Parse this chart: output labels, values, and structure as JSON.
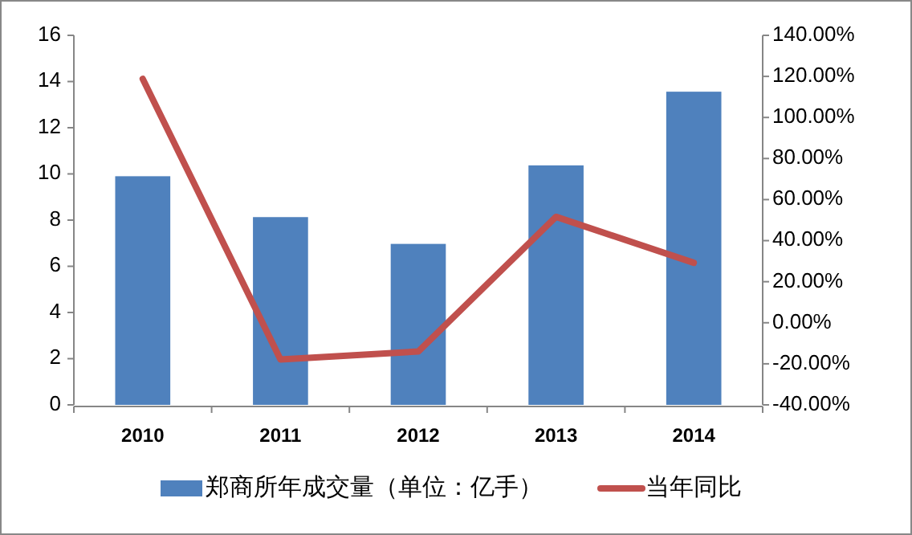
{
  "chart_data": {
    "type": "bar",
    "categories": [
      "2010",
      "2011",
      "2012",
      "2013",
      "2014"
    ],
    "series": [
      {
        "name": "郑商所年成交量（单位：亿手）",
        "color": "#4f81bd",
        "values": [
          9.9,
          8.13,
          6.97,
          10.37,
          13.56
        ]
      },
      {
        "name": "当年同比",
        "type": "line",
        "axis": "y2",
        "color": "#c0504d",
        "values": [
          118.8,
          -17.9,
          -14,
          51.6,
          29.2
        ]
      }
    ],
    "ylim": [
      0,
      16
    ],
    "yticks": [
      0,
      2,
      4,
      6,
      8,
      10,
      12,
      14,
      16
    ],
    "y2lim": [
      -40,
      140
    ],
    "y2ticks": [
      {
        "value": -40,
        "label": "-40.00%"
      },
      {
        "value": -20,
        "label": "-20.00%"
      },
      {
        "value": 0,
        "label": "0.00%"
      },
      {
        "value": 20,
        "label": "20.00%"
      },
      {
        "value": 40,
        "label": "40.00%"
      },
      {
        "value": 60,
        "label": "60.00%"
      },
      {
        "value": 80,
        "label": "80.00%"
      },
      {
        "value": 100,
        "label": "100.00%"
      },
      {
        "value": 120,
        "label": "120.00%"
      },
      {
        "value": 140,
        "label": "140.00%"
      }
    ],
    "legend": "bottom",
    "grid": false,
    "marker": "none",
    "line_style": "solid"
  }
}
